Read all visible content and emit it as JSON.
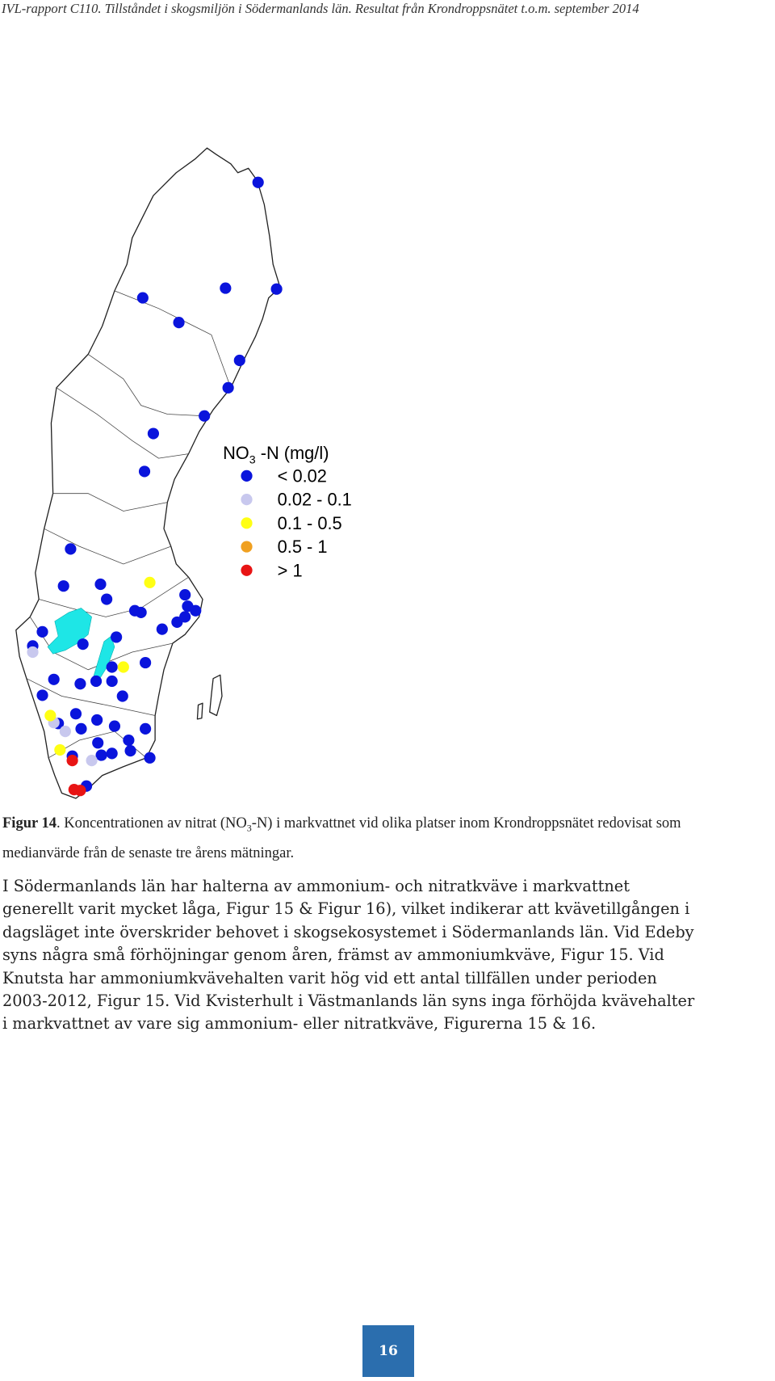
{
  "header": {
    "title": "IVL-rapport C110. Tillståndet i skogsmiljön i Södermanlands län. Resultat från Krondroppsnätet t.o.m. september 2014"
  },
  "figure": {
    "legend": {
      "title_main": "NO",
      "title_sub": "3",
      "title_rest": " -N (mg/l)",
      "items": [
        {
          "label": "< 0.02",
          "color": "#0a14dc"
        },
        {
          "label": "0.02 - 0.1",
          "color": "#c8c8ee"
        },
        {
          "label": "0.1 - 0.5",
          "color": "#ffff14"
        },
        {
          "label": "0.5 - 1",
          "color": "#f0a020"
        },
        {
          "label": "> 1",
          "color": "#e81414"
        }
      ]
    },
    "caption": {
      "label": "Figur 14",
      "text_start": ". Koncentrationen av nitrat (NO",
      "text_sub": "3",
      "text_end": "-N) i markvattnet vid olika platser inom Krondroppsnätet redovisat som medianvärde från de senaste tre årens mätningar."
    }
  },
  "paragraph": {
    "lines": [
      "I Södermanlands län har halterna av ammonium- och nitratkväve i markvattnet",
      "generellt varit mycket låga, Figur 15 & Figur 16), vilket indikerar att kvävetillgången i",
      "dagsläget inte överskrider behovet i skogsekosystemet i Södermanlands län. Vid Edeby",
      "syns några små förhöjningar genom åren, främst av ammoniumkväve, Figur 15. Vid",
      "Knutsta har ammoniumkvävehalten varit hög vid ett antal tillfällen under perioden",
      "2003-2012, Figur 15. Vid Kvisterhult i Västmanlands län syns inga förhöjda kvävehalter",
      "i markvattnet av vare sig ammonium- eller nitratkväve, Figurerna 15 & 16."
    ]
  },
  "footer": {
    "page_number": "16"
  }
}
